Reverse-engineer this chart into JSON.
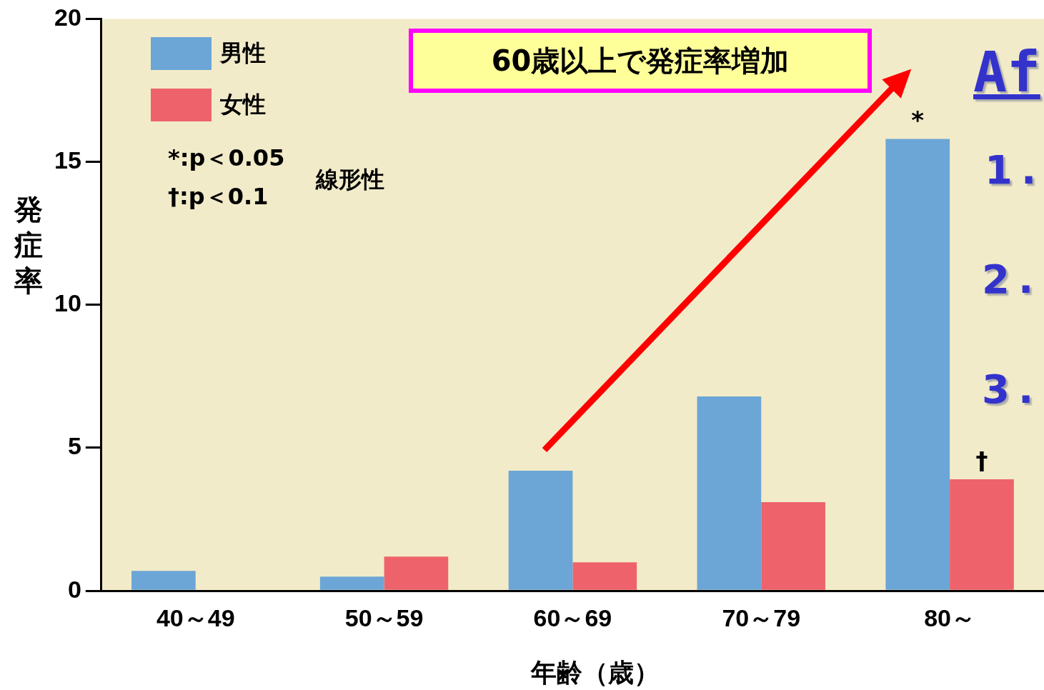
{
  "chart_data": {
    "type": "bar",
    "xlabel": "年齢（歳）",
    "ylabel": "発症率",
    "categories": [
      "40～49",
      "50～59",
      "60～69",
      "70～79",
      "80～"
    ],
    "series": [
      {
        "name": "男性",
        "color": "#6ca6d6",
        "values": [
          0.7,
          0.5,
          4.2,
          6.8,
          15.8
        ]
      },
      {
        "name": "女性",
        "color": "#ee636b",
        "values": [
          0,
          1.2,
          1.0,
          3.1,
          3.9
        ]
      }
    ],
    "ylim": [
      0,
      20
    ],
    "yticks": [
      0,
      5,
      10,
      15,
      20
    ],
    "grid": false,
    "legend": "top left",
    "annotations": [
      "60歳以上で発症率増加",
      "*:p＜0.05",
      "†:p＜0.1",
      "線形性",
      {
        "text": "*",
        "x": "80～",
        "y": 15.8
      },
      {
        "text": "†",
        "x": "80～",
        "y": 3.9
      },
      "Af",
      "1.",
      "2.",
      "3."
    ]
  }
}
